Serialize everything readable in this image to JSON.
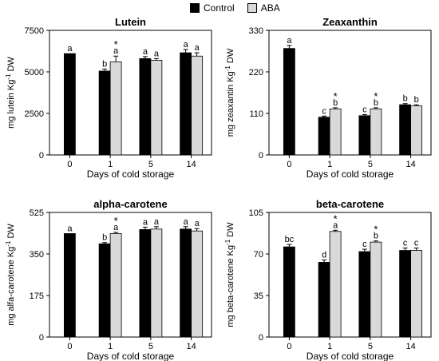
{
  "legend": {
    "control_label": "Control",
    "aba_label": "ABA"
  },
  "colors": {
    "control": "#000000",
    "aba": "#d9d9d9",
    "axis": "#000000"
  },
  "chart_data": [
    {
      "type": "bar",
      "title": "Lutein",
      "xlabel": "Days of cold storage",
      "ylabel": "mg lutein Kg⁻¹ DW",
      "categories": [
        "0",
        "1",
        "5",
        "14"
      ],
      "ylim": [
        0,
        7500
      ],
      "yticks": [
        "0",
        "2500",
        "5000",
        "7500"
      ],
      "series": [
        {
          "name": "Control",
          "values": [
            6100,
            5050,
            5800,
            6150
          ],
          "errors": [
            0,
            120,
            120,
            200
          ],
          "labels": [
            "a",
            "b",
            "a",
            "a"
          ]
        },
        {
          "name": "ABA",
          "values": [
            null,
            5600,
            5700,
            5950
          ],
          "errors": [
            null,
            350,
            100,
            200
          ],
          "labels": [
            "",
            "a",
            "a",
            "a"
          ],
          "stars": [
            false,
            true,
            false,
            false
          ]
        }
      ]
    },
    {
      "type": "bar",
      "title": "Zeaxanthin",
      "xlabel": "Days of cold storage",
      "ylabel": "mg zeaxantin Kg⁻¹ DW",
      "categories": [
        "0",
        "1",
        "5",
        "14"
      ],
      "ylim": [
        0,
        330
      ],
      "yticks": [
        "0",
        "110",
        "220",
        "330"
      ],
      "series": [
        {
          "name": "Control",
          "values": [
            282,
            100,
            104,
            133
          ],
          "errors": [
            8,
            3,
            3,
            3
          ],
          "labels": [
            "a",
            "c",
            "c",
            "b"
          ]
        },
        {
          "name": "ABA",
          "values": [
            null,
            122,
            122,
            130
          ],
          "errors": [
            null,
            3,
            3,
            3
          ],
          "labels": [
            "",
            "b",
            "b",
            "b"
          ],
          "stars": [
            false,
            true,
            true,
            false
          ]
        }
      ]
    },
    {
      "type": "bar",
      "title": "alpha-carotene",
      "xlabel": "Days of cold storage",
      "ylabel": "mg alfa-carotene Kg⁻¹ DW",
      "categories": [
        "0",
        "1",
        "5",
        "14"
      ],
      "ylim": [
        0,
        525
      ],
      "yticks": [
        "0",
        "175",
        "350",
        "525"
      ],
      "series": [
        {
          "name": "Control",
          "values": [
            436,
            393,
            453,
            455
          ],
          "errors": [
            0,
            5,
            10,
            10
          ],
          "labels": [
            "a",
            "b",
            "a",
            "a"
          ]
        },
        {
          "name": "ABA",
          "values": [
            null,
            436,
            455,
            447
          ],
          "errors": [
            null,
            5,
            10,
            10
          ],
          "labels": [
            "",
            "a",
            "a",
            "a"
          ],
          "stars": [
            false,
            true,
            false,
            false
          ]
        }
      ]
    },
    {
      "type": "bar",
      "title": "beta-carotene",
      "xlabel": "Days of cold storage",
      "ylabel": "mg beta-carotene Kg⁻¹ DW",
      "categories": [
        "0",
        "1",
        "5",
        "14"
      ],
      "ylim": [
        0,
        105
      ],
      "yticks": [
        "0",
        "35",
        "70",
        "105"
      ],
      "series": [
        {
          "name": "Control",
          "values": [
            76,
            63,
            72,
            73
          ],
          "errors": [
            2,
            2,
            2,
            2
          ],
          "labels": [
            "bc",
            "d",
            "c",
            "c"
          ]
        },
        {
          "name": "ABA",
          "values": [
            null,
            89,
            80,
            73
          ],
          "errors": [
            null,
            1,
            1,
            2
          ],
          "labels": [
            "",
            "a",
            "b",
            "c"
          ],
          "stars": [
            false,
            true,
            true,
            false
          ]
        }
      ]
    }
  ]
}
